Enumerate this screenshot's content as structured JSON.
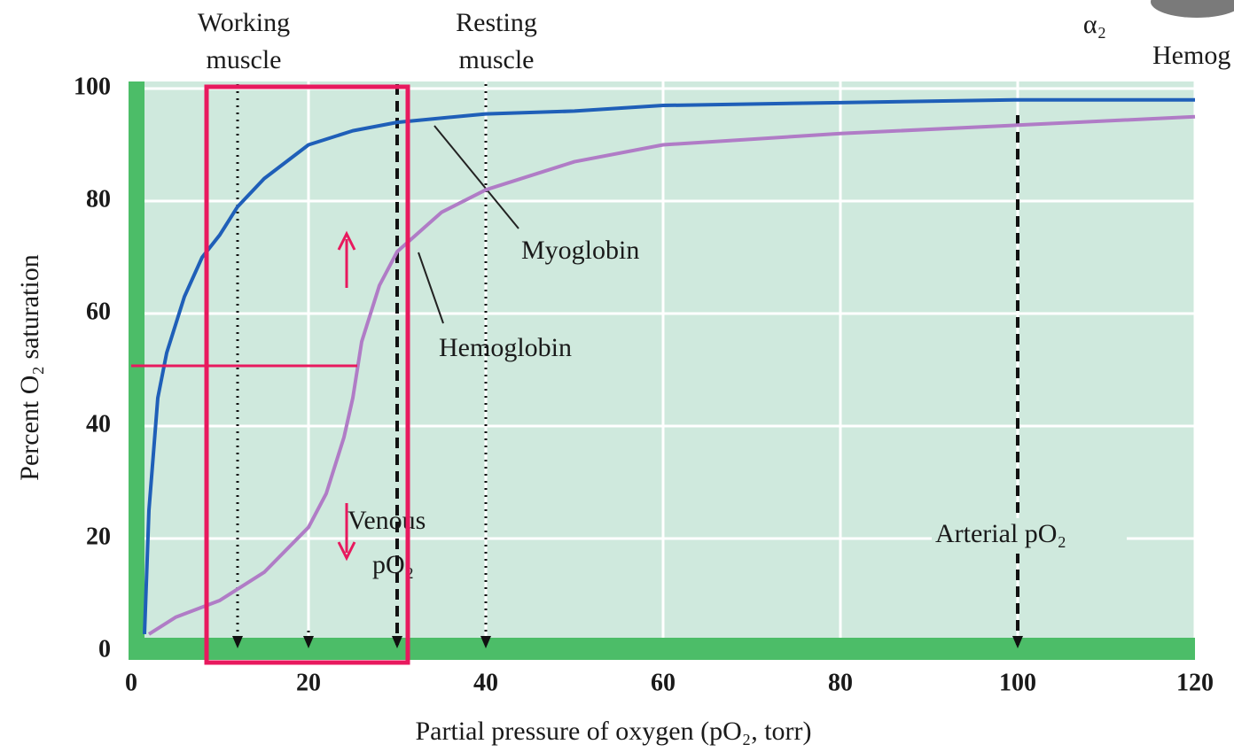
{
  "chart_data": {
    "type": "line",
    "x_label": "Partial pressure of oxygen (pO₂, torr)",
    "y_label": "Percent O₂ saturation",
    "xlim": [
      0,
      120
    ],
    "ylim": [
      0,
      100
    ],
    "xticks": [
      0,
      20,
      40,
      60,
      80,
      100,
      120
    ],
    "yticks": [
      0,
      20,
      40,
      60,
      80,
      100
    ],
    "grid": true,
    "series": [
      {
        "name": "Myoglobin",
        "color": "#1f5fb8",
        "x": [
          1.5,
          2,
          3,
          4,
          5,
          6,
          8,
          10,
          12,
          15,
          20,
          25,
          30,
          40,
          50,
          60,
          80,
          100,
          120
        ],
        "values": [
          3,
          25,
          45,
          53,
          58,
          63,
          70,
          74,
          79,
          84,
          90,
          92.5,
          94,
          95.5,
          96,
          97,
          97.5,
          98,
          98
        ]
      },
      {
        "name": "Hemoglobin",
        "color": "#b07cc6",
        "x": [
          2,
          5,
          10,
          15,
          20,
          22,
          24,
          25,
          26,
          28,
          30,
          35,
          40,
          50,
          60,
          80,
          100,
          120
        ],
        "values": [
          3,
          6,
          9,
          14,
          22,
          28,
          38,
          45,
          55,
          65,
          71,
          78,
          82,
          87,
          90,
          92,
          93.5,
          95
        ]
      }
    ],
    "reference_lines": [
      {
        "x": 12,
        "dash": "dotted",
        "label": [
          "Working",
          "muscle"
        ]
      },
      {
        "x": 20,
        "dash": "dotted"
      },
      {
        "x": 30,
        "dash": "dashed",
        "label": [
          "Venous",
          "pO₂"
        ]
      },
      {
        "x": 40,
        "dash": "dotted",
        "label": [
          "Resting",
          "muscle"
        ]
      },
      {
        "x": 100,
        "dash": "dashed",
        "label": [
          "Arterial pO₂"
        ]
      }
    ],
    "inset": {
      "symbol": "α₂",
      "caption": "Hemog"
    }
  }
}
